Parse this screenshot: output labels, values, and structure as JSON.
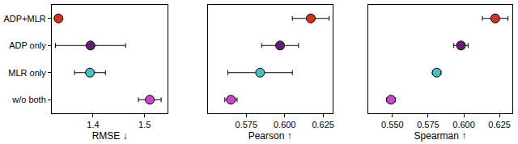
{
  "chart_data": [
    {
      "type": "scatter",
      "xlabel": "RMSE ↓",
      "categories": [
        "ADP+MLR",
        "ADP only",
        "MLR only",
        "w/o both"
      ],
      "values": [
        1.333,
        1.395,
        1.394,
        1.51
      ],
      "errors": [
        0.003,
        0.068,
        0.03,
        0.022
      ],
      "colors": [
        "#d7301f",
        "#6a1b78",
        "#3cc6c8",
        "#d43fd4"
      ],
      "xlim": [
        1.32,
        1.545
      ],
      "xticks": [
        1.4,
        1.5
      ],
      "grid": false
    },
    {
      "type": "scatter",
      "xlabel": "Pearson ↑",
      "categories": [
        "ADP+MLR",
        "ADP only",
        "MLR only",
        "w/o both"
      ],
      "values": [
        0.617,
        0.597,
        0.584,
        0.565
      ],
      "errors": [
        0.012,
        0.012,
        0.021,
        0.004
      ],
      "colors": [
        "#d7301f",
        "#6a1b78",
        "#3cc6c8",
        "#d43fd4"
      ],
      "xlim": [
        0.55,
        0.631
      ],
      "xticks": [
        0.575,
        {
          "value": 0.6,
          "label": "0.600"
        },
        0.625
      ],
      "grid": false
    },
    {
      "type": "scatter",
      "xlabel": "Spearman ↑",
      "categories": [
        "ADP+MLR",
        "ADP only",
        "MLR only",
        "w/o both"
      ],
      "values": [
        0.622,
        0.598,
        0.581,
        0.549
      ],
      "errors": [
        0.009,
        0.005,
        0.003,
        0.003
      ],
      "colors": [
        "#d7301f",
        "#6a1b78",
        "#3cc6c8",
        "#d43fd4"
      ],
      "xlim": [
        0.533,
        0.634
      ],
      "xticks": [
        {
          "value": 0.55,
          "label": "0.550"
        },
        0.575,
        {
          "value": 0.6,
          "label": "0.600"
        },
        0.625
      ],
      "grid": false
    }
  ]
}
